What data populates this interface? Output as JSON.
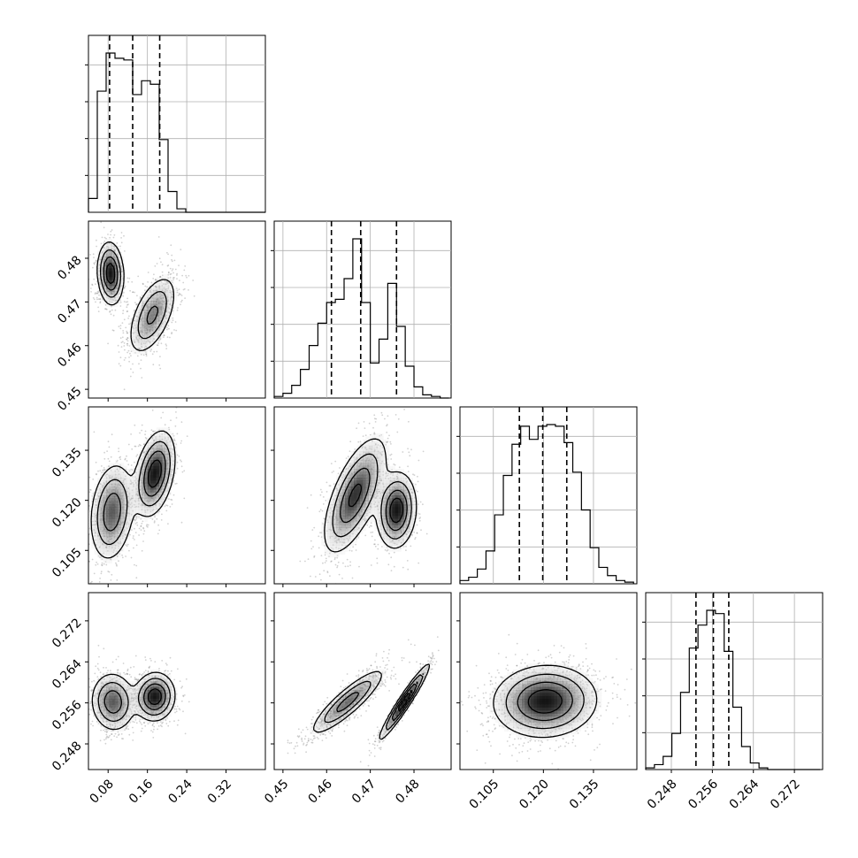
{
  "chart_data": {
    "type": "corner",
    "grid": true,
    "parameters": [
      {
        "range": [
          0.04,
          0.4
        ],
        "ticks": [
          0.08,
          0.16,
          0.24,
          0.32
        ],
        "tick_labels": [
          "0.08",
          "0.16",
          "0.24",
          "0.32"
        ],
        "quantiles": [
          0.083,
          0.13,
          0.185
        ],
        "hist": {
          "edges": [
            0.04,
            0.058,
            0.076,
            0.094,
            0.112,
            0.13,
            0.148,
            0.166,
            0.184,
            0.202,
            0.22,
            0.238,
            0.256,
            0.274,
            0.292,
            0.31,
            0.328,
            0.346,
            0.364,
            0.382,
            0.4
          ],
          "counts": [
            0.08,
            0.7,
            0.92,
            0.89,
            0.88,
            0.68,
            0.76,
            0.74,
            0.42,
            0.12,
            0.02,
            0,
            0,
            0,
            0,
            0,
            0,
            0,
            0,
            0
          ]
        },
        "modes": [
          {
            "center": [
              0.085
            ],
            "width": 0.025
          },
          {
            "center": [
              0.175
            ],
            "width": 0.028
          }
        ]
      },
      {
        "range": [
          0.448,
          0.4885
        ],
        "ticks": [
          0.45,
          0.46,
          0.47,
          0.48
        ],
        "tick_labels": [
          "0.45",
          "0.46",
          "0.47",
          "0.48"
        ],
        "quantiles": [
          0.4611,
          0.4678,
          0.476
        ],
        "hist": {
          "edges": [
            0.448,
            0.45,
            0.452,
            0.454,
            0.456,
            0.458,
            0.46,
            0.462,
            0.464,
            0.466,
            0.468,
            0.47,
            0.472,
            0.474,
            0.476,
            0.478,
            0.48,
            0.482,
            0.484,
            0.486,
            0.488
          ],
          "counts": [
            0.01,
            0.03,
            0.08,
            0.18,
            0.33,
            0.47,
            0.6,
            0.62,
            0.75,
            1.0,
            0.6,
            0.22,
            0.37,
            0.72,
            0.45,
            0.2,
            0.07,
            0.02,
            0.01,
            0.0
          ]
        }
      },
      {
        "range": [
          0.095,
          0.148
        ],
        "ticks": [
          0.105,
          0.12,
          0.135
        ],
        "tick_labels": [
          "0.105",
          "0.120",
          "0.135"
        ],
        "quantiles": [
          0.1128,
          0.1198,
          0.127
        ],
        "hist": {
          "edges": [
            0.095,
            0.0976,
            0.1002,
            0.1028,
            0.1054,
            0.108,
            0.1106,
            0.1132,
            0.1158,
            0.1184,
            0.121,
            0.1236,
            0.1262,
            0.1288,
            0.1314,
            0.134,
            0.1366,
            0.1392,
            0.1418,
            0.1444,
            0.147
          ],
          "counts": [
            0.02,
            0.04,
            0.09,
            0.2,
            0.42,
            0.66,
            0.85,
            0.96,
            0.88,
            0.96,
            0.97,
            0.96,
            0.86,
            0.68,
            0.45,
            0.22,
            0.1,
            0.05,
            0.02,
            0.01
          ]
        }
      },
      {
        "range": [
          0.243,
          0.2775
        ],
        "ticks": [
          0.248,
          0.256,
          0.264,
          0.272
        ],
        "tick_labels": [
          "0.248",
          "0.256",
          "0.264",
          "0.272"
        ],
        "quantiles": [
          0.2528,
          0.2562,
          0.2592
        ],
        "hist": {
          "edges": [
            0.243,
            0.2447,
            0.2464,
            0.2481,
            0.2498,
            0.2515,
            0.2532,
            0.2549,
            0.2566,
            0.2583,
            0.26,
            0.2617,
            0.2634,
            0.2651,
            0.2668,
            0.2685,
            0.2702,
            0.2719,
            0.2736,
            0.2753,
            0.277
          ],
          "counts": [
            0.01,
            0.03,
            0.08,
            0.22,
            0.47,
            0.74,
            0.88,
            0.97,
            0.95,
            0.72,
            0.38,
            0.14,
            0.04,
            0.01,
            0.0,
            0.0,
            0.0,
            0.0,
            0.0,
            0.0
          ]
        }
      }
    ],
    "pairs": {
      "1-0": {
        "components": [
          {
            "mx": 0.085,
            "my": 0.4765,
            "sx": 0.013,
            "sy": 0.0035,
            "rho": -0.1,
            "w": 0.45
          },
          {
            "mx": 0.17,
            "my": 0.467,
            "sx": 0.024,
            "sy": 0.0045,
            "rho": 0.55,
            "w": 0.55
          }
        ]
      },
      "2-0": {
        "components": [
          {
            "mx": 0.088,
            "my": 0.1165,
            "sx": 0.022,
            "sy": 0.0072,
            "rho": 0.2,
            "w": 0.5
          },
          {
            "mx": 0.175,
            "my": 0.128,
            "sx": 0.02,
            "sy": 0.0062,
            "rho": 0.35,
            "w": 0.5
          }
        ]
      },
      "2-1": {
        "components": [
          {
            "mx": 0.4665,
            "my": 0.1215,
            "sx": 0.0035,
            "sy": 0.0085,
            "rho": 0.65,
            "w": 0.62
          },
          {
            "mx": 0.476,
            "my": 0.117,
            "sx": 0.0022,
            "sy": 0.0055,
            "rho": 0.1,
            "w": 0.38
          }
        ]
      },
      "3-0": {
        "components": [
          {
            "mx": 0.09,
            "my": 0.2562,
            "sx": 0.022,
            "sy": 0.0028,
            "rho": -0.05,
            "w": 0.5
          },
          {
            "mx": 0.175,
            "my": 0.2572,
            "sx": 0.02,
            "sy": 0.0023,
            "rho": 0.05,
            "w": 0.5
          }
        ]
      },
      "3-1": {
        "components": [
          {
            "mx": 0.4648,
            "my": 0.2562,
            "sx": 0.0042,
            "sy": 0.0032,
            "rho": 0.88,
            "w": 0.6
          },
          {
            "mx": 0.4778,
            "my": 0.2562,
            "sx": 0.0028,
            "sy": 0.0036,
            "rho": 0.96,
            "w": 0.4
          }
        ]
      },
      "3-2": {
        "components": [
          {
            "mx": 0.1205,
            "my": 0.2563,
            "sx": 0.0075,
            "sy": 0.0034,
            "rho": 0.05,
            "w": 1.0
          }
        ]
      }
    }
  }
}
